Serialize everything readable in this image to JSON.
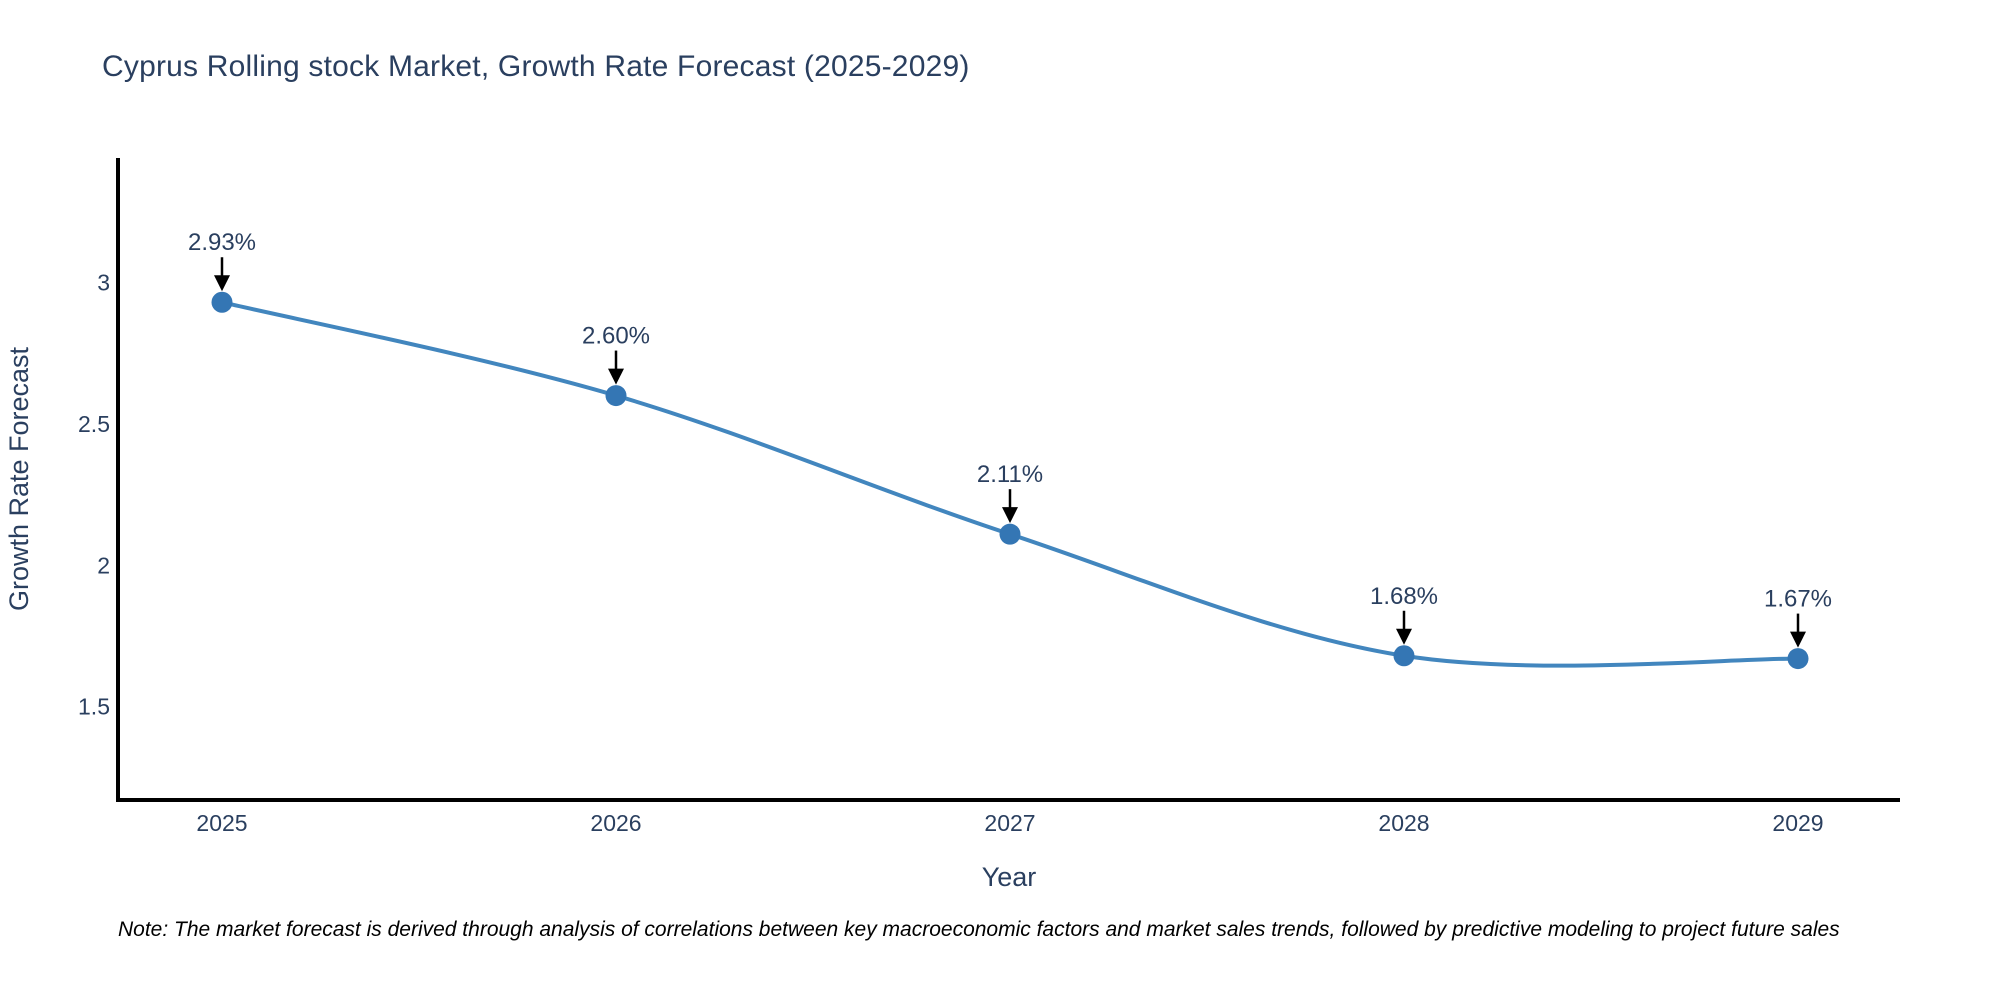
{
  "page": {
    "title": "Cyprus Rolling stock Market, Growth Rate Forecast (2025-2029)",
    "note": "Note: The market forecast is derived through analysis of correlations between key macroeconomic factors and market sales trends, followed by predictive modeling to project future sales"
  },
  "chart_data": {
    "type": "line",
    "line_shape": "spline",
    "title": "Cyprus Rolling stock Market, Growth Rate Forecast (2025-2029)",
    "xlabel": "Year",
    "ylabel": "Growth Rate Forecast",
    "categories": [
      "2025",
      "2026",
      "2027",
      "2028",
      "2029"
    ],
    "values": [
      2.93,
      2.6,
      2.11,
      1.68,
      1.67
    ],
    "point_labels": [
      "2.93%",
      "2.60%",
      "2.11%",
      "1.68%",
      "1.67%"
    ],
    "yticks": [
      1.5,
      2,
      2.5,
      3
    ],
    "ylim": [
      1.17,
      3.44
    ],
    "grid": false,
    "legend": "none",
    "colors": {
      "line": "#4286be",
      "marker": "#3476b4",
      "axis": "#000000",
      "text": "#2a3f5f",
      "annotation_text": "#2a3f5f",
      "annotation_arrow": "#000000"
    }
  }
}
